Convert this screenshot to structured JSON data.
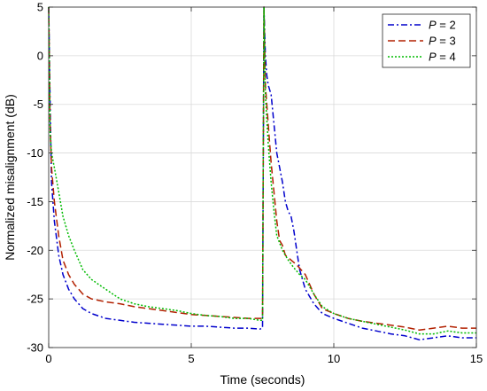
{
  "chart_data": {
    "type": "line",
    "xlabel": "Time (seconds)",
    "ylabel": "Normalized misalignment (dB)",
    "xlim": [
      0,
      15
    ],
    "ylim": [
      -30,
      5
    ],
    "xticks": [
      0,
      5,
      10,
      15
    ],
    "yticks": [
      5,
      0,
      -5,
      -10,
      -15,
      -20,
      -25,
      -30
    ],
    "grid": true,
    "legend_position": "top-right",
    "series": [
      {
        "name": "P = 2",
        "legend_symbol": "P",
        "legend_value": "= 2",
        "color": "#0000cc",
        "dash": "7,3,2,3",
        "x": [
          0,
          0.05,
          0.1,
          0.2,
          0.35,
          0.5,
          0.7,
          0.9,
          1.2,
          1.5,
          2,
          2.5,
          3,
          3.5,
          4,
          4.5,
          5,
          5.5,
          6,
          6.5,
          7,
          7.4,
          7.5,
          7.55,
          7.6,
          7.65,
          7.7,
          7.8,
          7.9,
          8.0,
          8.1,
          8.2,
          8.3,
          8.4,
          8.5,
          8.6,
          8.7,
          8.8,
          8.9,
          9.0,
          9.3,
          9.6,
          10,
          10.5,
          11,
          11.5,
          12,
          12.5,
          13,
          13.5,
          14,
          14.5,
          15
        ],
        "y": [
          5,
          -5,
          -13,
          -17,
          -20.5,
          -22.5,
          -24,
          -25,
          -26,
          -26.5,
          -27,
          -27.2,
          -27.4,
          -27.5,
          -27.6,
          -27.7,
          -27.8,
          -27.8,
          -27.9,
          -28,
          -28,
          -28.1,
          -28,
          5,
          0,
          -2,
          -3,
          -4,
          -7,
          -10,
          -11.5,
          -13,
          -15,
          -16,
          -16.5,
          -18,
          -20,
          -22,
          -23,
          -24,
          -25.5,
          -26.5,
          -27,
          -27.5,
          -28,
          -28.3,
          -28.6,
          -28.8,
          -29.2,
          -29,
          -28.8,
          -29,
          -29
        ]
      },
      {
        "name": "P = 3",
        "legend_symbol": "P",
        "legend_value": "= 3",
        "color": "#b22000",
        "dash": "8,4",
        "x": [
          0,
          0.05,
          0.1,
          0.2,
          0.35,
          0.5,
          0.7,
          0.9,
          1.2,
          1.5,
          2,
          2.5,
          3,
          3.5,
          4,
          4.5,
          5,
          5.5,
          6,
          6.5,
          7,
          7.4,
          7.5,
          7.55,
          7.6,
          7.7,
          7.8,
          7.9,
          8.0,
          8.1,
          8.2,
          8.3,
          8.5,
          8.7,
          9.0,
          9.3,
          9.6,
          10,
          10.5,
          11,
          11.5,
          12,
          12.5,
          13,
          13.5,
          14,
          14.5,
          15
        ],
        "y": [
          5,
          -7,
          -11.5,
          -15,
          -18.5,
          -21,
          -22.5,
          -23.5,
          -24.5,
          -25,
          -25.3,
          -25.5,
          -25.8,
          -26,
          -26.2,
          -26.4,
          -26.6,
          -26.7,
          -26.8,
          -26.9,
          -27,
          -27,
          -27,
          5,
          -3,
          -7,
          -11,
          -14,
          -17,
          -19,
          -19.5,
          -20.5,
          -21,
          -21.5,
          -22.5,
          -24.5,
          -26,
          -26.5,
          -27,
          -27.3,
          -27.5,
          -27.7,
          -27.9,
          -28.2,
          -28,
          -27.8,
          -28,
          -28
        ]
      },
      {
        "name": "P = 4",
        "legend_symbol": "P",
        "legend_value": "= 4",
        "color": "#00bb00",
        "dash": "2,2",
        "x": [
          0,
          0.05,
          0.1,
          0.2,
          0.35,
          0.5,
          0.7,
          0.9,
          1.2,
          1.5,
          2,
          2.5,
          3,
          3.5,
          4,
          4.5,
          5,
          5.5,
          6,
          6.5,
          7,
          7.4,
          7.5,
          7.55,
          7.6,
          7.7,
          7.8,
          7.9,
          8.0,
          8.2,
          8.4,
          8.6,
          8.8,
          9.0,
          9.3,
          9.6,
          10,
          10.5,
          11,
          11.5,
          12,
          12.5,
          13,
          13.5,
          14,
          14.5,
          15
        ],
        "y": [
          5,
          -8,
          -10,
          -11.5,
          -14,
          -16.5,
          -18.5,
          -20,
          -22,
          -23,
          -24,
          -25,
          -25.5,
          -25.8,
          -26,
          -26.2,
          -26.5,
          -26.7,
          -26.8,
          -27,
          -27,
          -27.2,
          -27.2,
          5,
          -4,
          -9,
          -13,
          -16,
          -18.5,
          -20,
          -21,
          -21.8,
          -22.5,
          -23,
          -24.5,
          -25.8,
          -26.5,
          -27,
          -27.3,
          -27.6,
          -27.9,
          -28.2,
          -28.6,
          -28.6,
          -28.3,
          -28.5,
          -28.5
        ]
      }
    ]
  }
}
